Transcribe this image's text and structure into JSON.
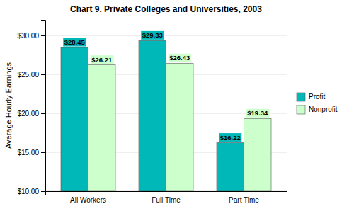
{
  "chart_data": {
    "type": "bar",
    "title": "Chart 9. Private Colleges and Universities, 2003",
    "ylabel": "Average Hourly Earnings",
    "categories": [
      "All Workers",
      "Full Time",
      "Part Time"
    ],
    "series": [
      {
        "name": "Profit",
        "color": "#00B8B8",
        "values": [
          28.45,
          29.33,
          16.22
        ],
        "value_labels": [
          "$28.45",
          "$29.33",
          "$16.22"
        ]
      },
      {
        "name": "Nonprofit",
        "color": "#CCFFCC",
        "values": [
          26.21,
          26.43,
          19.34
        ],
        "value_labels": [
          "$26.21",
          "$26.43",
          "$19.34"
        ]
      }
    ],
    "ylim": [
      10.0,
      32.0
    ],
    "yticks": [
      {
        "value": 10.0,
        "label": "$10.00"
      },
      {
        "value": 15.0,
        "label": "$15.00"
      },
      {
        "value": 20.0,
        "label": "$20.00"
      },
      {
        "value": 25.0,
        "label": "$25.00"
      },
      {
        "value": 30.0,
        "label": "$30.00"
      }
    ],
    "grid": true,
    "legend": "right",
    "data_labels": true
  }
}
